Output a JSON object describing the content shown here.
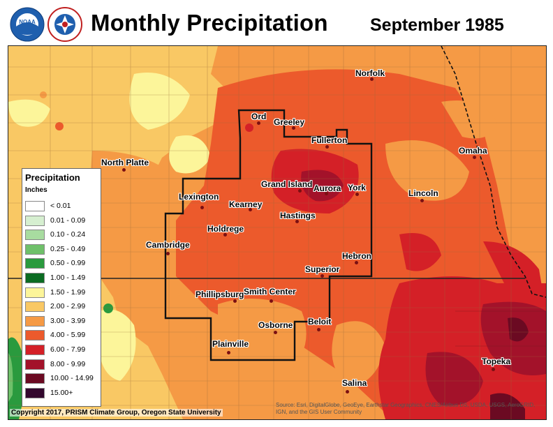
{
  "header": {
    "title": "Monthly Precipitation",
    "subtitle": "September 1985",
    "logos": [
      "noaa-logo",
      "nws-logo"
    ]
  },
  "legend": {
    "title": "Precipitation",
    "units": "Inches",
    "items": [
      {
        "label": "< 0.01",
        "color": "#ffffff"
      },
      {
        "label": "0.01 - 0.09",
        "color": "#d6efd0"
      },
      {
        "label": "0.10 - 0.24",
        "color": "#a8dca0"
      },
      {
        "label": "0.25 - 0.49",
        "color": "#6fc06a"
      },
      {
        "label": "0.50 - 0.99",
        "color": "#2a9a3e"
      },
      {
        "label": "1.00 - 1.49",
        "color": "#0b6b22"
      },
      {
        "label": "1.50 - 1.99",
        "color": "#fcf59a"
      },
      {
        "label": "2.00 - 2.99",
        "color": "#f9c864"
      },
      {
        "label": "3.00 - 3.99",
        "color": "#f59a45"
      },
      {
        "label": "4.00 - 5.99",
        "color": "#ec5a2c"
      },
      {
        "label": "6.00 - 7.99",
        "color": "#d42027"
      },
      {
        "label": "8.00 - 9.99",
        "color": "#a3122a"
      },
      {
        "label": "10.00 - 14.99",
        "color": "#6b0a22"
      },
      {
        "label": "15.00+",
        "color": "#33082e"
      }
    ]
  },
  "cities": [
    {
      "name": "Norfolk"
    },
    {
      "name": "Ord"
    },
    {
      "name": "Greeley"
    },
    {
      "name": "Fullerton"
    },
    {
      "name": "Omaha"
    },
    {
      "name": "North Platte"
    },
    {
      "name": "Grand Island"
    },
    {
      "name": "Aurora"
    },
    {
      "name": "York"
    },
    {
      "name": "Lincoln"
    },
    {
      "name": "Lexington"
    },
    {
      "name": "Kearney"
    },
    {
      "name": "Hastings"
    },
    {
      "name": "Holdrege"
    },
    {
      "name": "Cambridge"
    },
    {
      "name": "Hebron"
    },
    {
      "name": "Superior"
    },
    {
      "name": "Phillipsburg"
    },
    {
      "name": "Smith Center"
    },
    {
      "name": "Beloit"
    },
    {
      "name": "Osborne"
    },
    {
      "name": "Plainville"
    },
    {
      "name": "Topeka"
    },
    {
      "name": "Salina"
    }
  ],
  "footer": {
    "copyright": "Copyright 2017, PRISM Climate Group, Oregon State University",
    "source": "Source: Esri, DigitalGlobe, GeoEye, Earthstar Geographics, CNES/Airbus DS, USDA, USGS, AeroGRID, IGN, and the GIS User Community"
  }
}
